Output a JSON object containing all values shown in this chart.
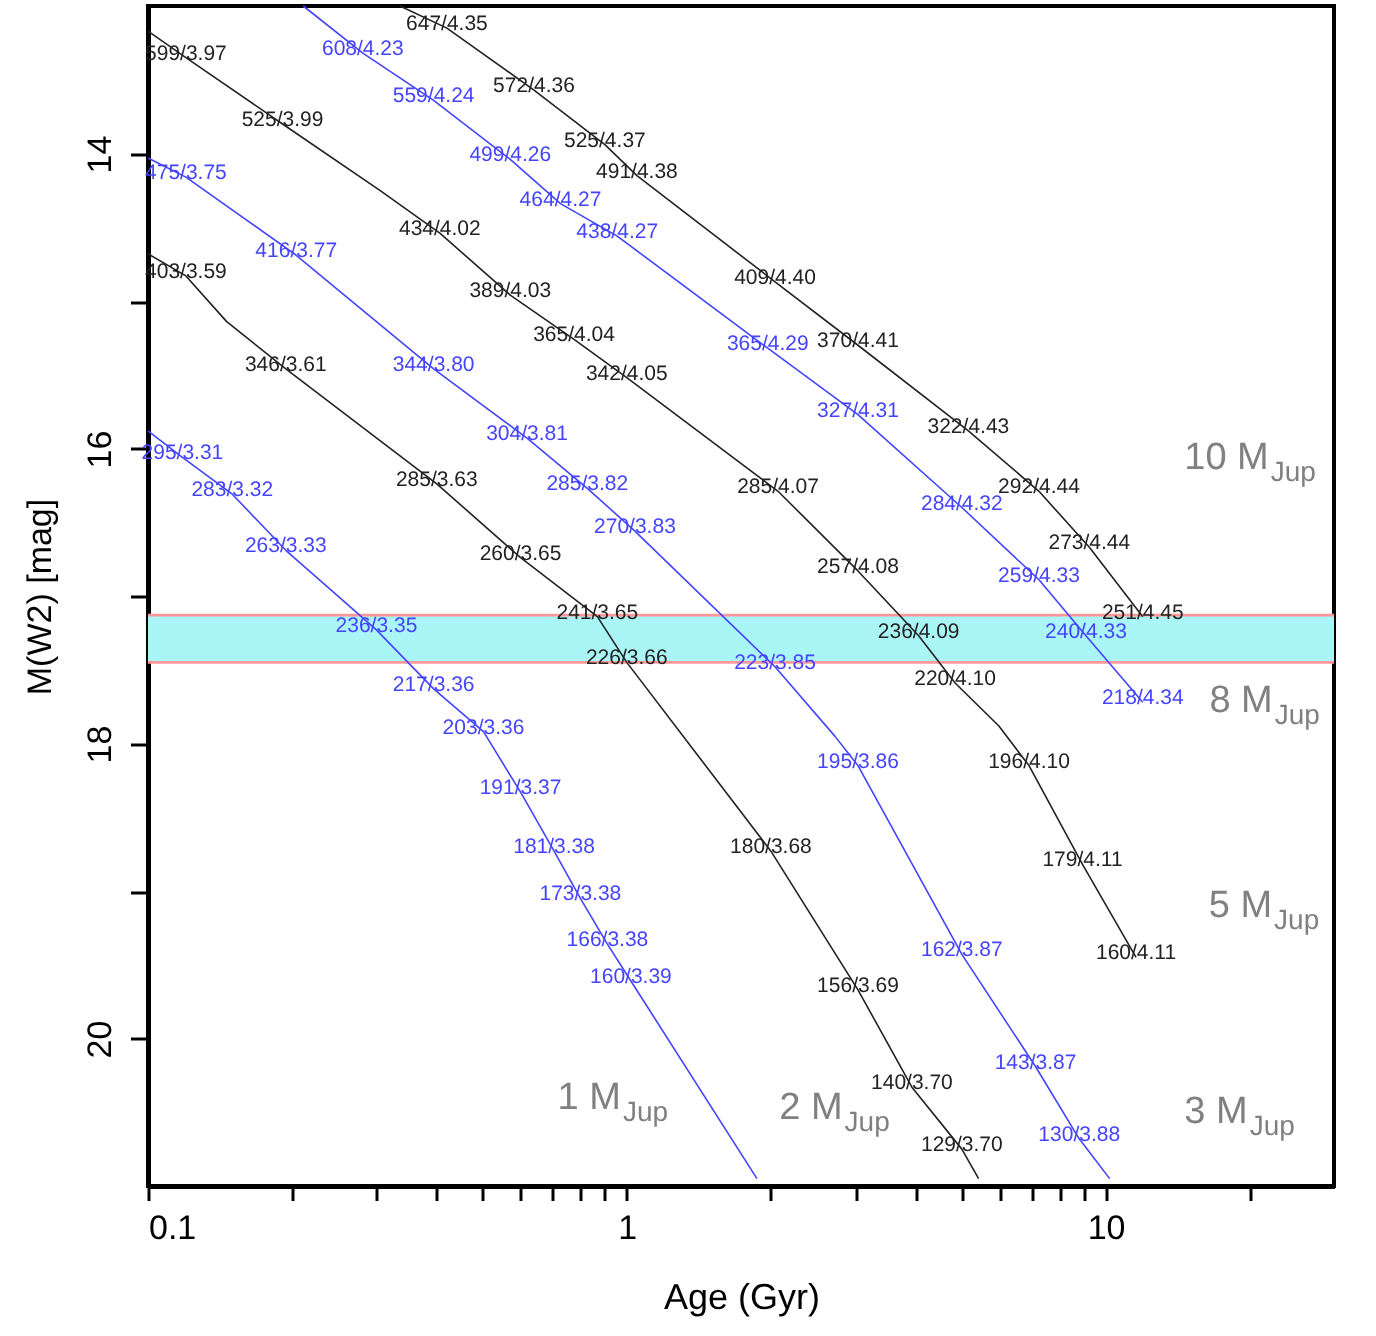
{
  "chart_data": {
    "type": "line",
    "xlabel": "Age (Gyr)",
    "ylabel": "M(W2) [mag]",
    "log": "x",
    "xlim": [
      0.1,
      30
    ],
    "ylim": [
      21,
      13
    ],
    "xticks": [
      0.1,
      {
        "value": 0.2,
        "label": null
      },
      {
        "value": 0.3,
        "label": null
      },
      {
        "value": 0.4,
        "label": null
      },
      {
        "value": 0.5,
        "label": null
      },
      {
        "value": 0.6,
        "label": null
      },
      {
        "value": 0.7,
        "label": null
      },
      {
        "value": 0.8,
        "label": null
      },
      {
        "value": 0.9,
        "label": null
      },
      1,
      {
        "value": 2,
        "label": null
      },
      {
        "value": 3,
        "label": null
      },
      {
        "value": 4,
        "label": null
      },
      {
        "value": 5,
        "label": null
      },
      {
        "value": 6,
        "label": null
      },
      {
        "value": 7,
        "label": null
      },
      {
        "value": 8,
        "label": null
      },
      {
        "value": 9,
        "label": null
      },
      10,
      {
        "value": 20,
        "label": null
      }
    ],
    "yticks": [
      14,
      {
        "value": 15,
        "label": null
      },
      16,
      {
        "value": 17,
        "label": null
      },
      18,
      {
        "value": 19,
        "label": null
      },
      20
    ],
    "grid": false,
    "marker": "none",
    "line_style": "solid",
    "bands": [
      {
        "axis": "y",
        "from": 17.13,
        "to": 17.45,
        "color": "#aaf5f5"
      }
    ],
    "ref_lines": [
      {
        "axis": "y",
        "value": 17.13,
        "color": "#ff9999"
      },
      {
        "axis": "y",
        "value": 17.45,
        "color": "#ff9999"
      }
    ],
    "series": [
      {
        "name": "10 M$_{Jup}$",
        "color": "#222222",
        "x": [
          0.336,
          0.421,
          0.64,
          0.9,
          1.05,
          2.04,
          3.04,
          5.17,
          7.26,
          9.25,
          11.96
        ],
        "values": [
          13.0,
          13.15,
          13.57,
          13.94,
          14.15,
          14.87,
          15.3,
          15.88,
          16.29,
          16.67,
          17.14
        ],
        "value_labels": [
          null,
          "647/4.35",
          "572/4.36",
          "525/4.37",
          "491/4.38",
          "409/4.40",
          "370/4.41",
          "322/4.43",
          "292/4.44",
          "273/4.44",
          "251/4.45"
        ]
      },
      {
        "name": "8 M$_{Jup}$",
        "color": "#4444ff",
        "x": [
          0.211,
          0.281,
          0.395,
          0.571,
          0.727,
          0.955,
          1.97,
          3.04,
          5.01,
          7.26,
          9.1,
          11.96
        ],
        "values": [
          13.0,
          13.32,
          13.64,
          14.04,
          14.34,
          14.56,
          15.32,
          15.77,
          16.4,
          16.89,
          17.27,
          17.72
        ],
        "value_labels": [
          null,
          "608/4.23",
          "559/4.24",
          "499/4.26",
          "464/4.27",
          "438/4.27",
          "365/4.29",
          "327/4.31",
          "284/4.32",
          "259/4.33",
          "240/4.33",
          "218/4.34"
        ]
      },
      {
        "name": "5 M$_{Jup}$",
        "color": "#222222",
        "x": [
          0.1,
          0.12,
          0.191,
          0.305,
          0.407,
          0.571,
          0.776,
          1.0,
          2.07,
          3.04,
          4.07,
          4.85,
          5.98,
          6.92,
          8.95,
          11.58
        ],
        "values": [
          13.17,
          13.35,
          13.8,
          14.25,
          14.54,
          14.96,
          15.26,
          15.52,
          16.29,
          16.83,
          17.27,
          17.59,
          17.88,
          18.15,
          18.82,
          19.45
        ],
        "value_labels": [
          null,
          "599/3.97",
          "525/3.99",
          null,
          "434/4.02",
          "389/4.03",
          "365/4.04",
          "342/4.05",
          "285/4.07",
          "257/4.08",
          "236/4.09",
          "220/4.10",
          null,
          "196/4.10",
          "179/4.11",
          "160/4.11"
        ]
      },
      {
        "name": "3 M$_{Jup}$",
        "color": "#4444ff",
        "x": [
          0.1,
          0.12,
          0.204,
          0.395,
          0.619,
          0.827,
          1.04,
          2.04,
          2.72,
          3.04,
          5.01,
          7.14,
          8.81,
          10.2
        ],
        "values": [
          14.03,
          14.16,
          14.69,
          15.46,
          15.93,
          16.27,
          16.56,
          17.48,
          17.95,
          18.15,
          19.43,
          20.19,
          20.68,
          20.95
        ],
        "value_labels": [
          null,
          "475/3.75",
          "416/3.77",
          "344/3.80",
          "304/3.81",
          "285/3.82",
          "270/3.83",
          "223/3.85",
          null,
          "195/3.86",
          "162/3.87",
          "143/3.87",
          "130/3.88",
          null
        ]
      },
      {
        "name": "2 M$_{Jup}$",
        "color": "#222222",
        "x": [
          0.1,
          0.12,
          0.146,
          0.194,
          0.401,
          0.6,
          0.868,
          1.0,
          2.0,
          3.04,
          3.94,
          5.01,
          5.43
        ],
        "values": [
          14.68,
          14.83,
          15.14,
          15.46,
          16.24,
          16.74,
          17.14,
          17.45,
          18.73,
          19.67,
          20.33,
          20.75,
          20.95
        ],
        "value_labels": [
          null,
          "403/3.59",
          null,
          "346/3.61",
          "285/3.63",
          "260/3.65",
          "241/3.65",
          "226/3.66",
          "180/3.68",
          "156/3.69",
          "140/3.70",
          "129/3.70",
          null
        ]
      },
      {
        "name": "1 M$_{Jup}$",
        "color": "#4444ff",
        "x": [
          0.1,
          0.118,
          0.15,
          0.194,
          0.3,
          0.395,
          0.502,
          0.6,
          0.705,
          0.8,
          0.911,
          1.02,
          1.87
        ],
        "values": [
          15.88,
          16.06,
          16.31,
          16.69,
          17.23,
          17.63,
          17.92,
          18.33,
          18.73,
          19.05,
          19.36,
          19.61,
          20.95
        ],
        "value_labels": [
          null,
          "295/3.31",
          "283/3.32",
          "263/3.33",
          "236/3.35",
          "217/3.36",
          "203/3.36",
          "191/3.37",
          "181/3.38",
          "173/3.38",
          "166/3.38",
          "160/3.39",
          null
        ]
      }
    ]
  }
}
